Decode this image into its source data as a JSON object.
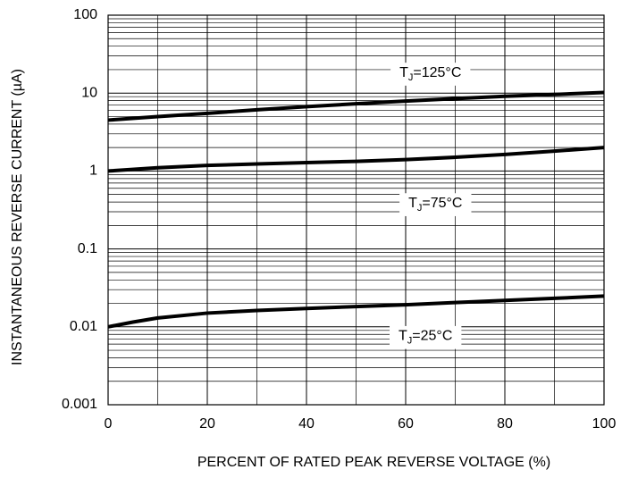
{
  "chart_data": {
    "type": "line",
    "title": "",
    "xlabel": "PERCENT OF RATED PEAK REVERSE VOLTAGE (%)",
    "ylabel": "INSTANTANEOUS REVERSE CURRENT (µA)",
    "x_scale": "linear",
    "y_scale": "log",
    "xlim": [
      0,
      100
    ],
    "ylim": [
      0.001,
      100
    ],
    "grid": true,
    "x_ticks": [
      "0",
      "20",
      "40",
      "60",
      "80",
      "100"
    ],
    "y_ticks": [
      "0.001",
      "0.01",
      "0.1",
      "1",
      "10",
      "100"
    ],
    "series": [
      {
        "name": "T_J=125°C",
        "x": [
          0,
          10,
          20,
          30,
          40,
          50,
          60,
          70,
          80,
          90,
          100
        ],
        "y": [
          4.5,
          5.0,
          5.5,
          6.1,
          6.7,
          7.3,
          7.9,
          8.5,
          9.1,
          9.6,
          10.2
        ]
      },
      {
        "name": "T_J=75°C",
        "x": [
          0,
          10,
          20,
          30,
          40,
          50,
          60,
          70,
          80,
          90,
          100
        ],
        "y": [
          1.0,
          1.1,
          1.18,
          1.23,
          1.28,
          1.33,
          1.4,
          1.5,
          1.63,
          1.8,
          2.0
        ]
      },
      {
        "name": "T_J=25°C",
        "x": [
          0,
          5,
          10,
          20,
          30,
          40,
          50,
          60,
          70,
          80,
          90,
          100
        ],
        "y": [
          0.01,
          0.0115,
          0.013,
          0.015,
          0.0162,
          0.0172,
          0.0182,
          0.0192,
          0.0205,
          0.0218,
          0.0232,
          0.0248
        ]
      }
    ],
    "annotations": [
      {
        "main": "T",
        "sub": "J",
        "rest": "=125°C",
        "x": 65,
        "y": 18
      },
      {
        "main": "T",
        "sub": "J",
        "rest": "=75°C",
        "x": 66,
        "y": 0.38
      },
      {
        "main": "T",
        "sub": "J",
        "rest": "=25°C",
        "x": 64,
        "y": 0.0075
      }
    ]
  }
}
